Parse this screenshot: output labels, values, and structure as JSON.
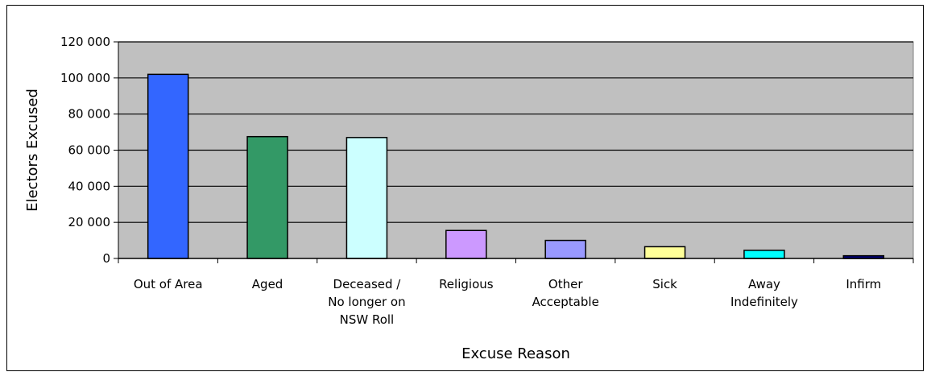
{
  "chart_data": {
    "type": "bar",
    "title": "",
    "xlabel": "Excuse Reason",
    "ylabel": "Electors Excused",
    "ylim": [
      0,
      120000
    ],
    "yticks": [
      0,
      20000,
      40000,
      60000,
      80000,
      100000,
      120000
    ],
    "ytick_labels": [
      "0",
      "20 000",
      "40 000",
      "60 000",
      "80 000",
      "100 000",
      "120 000"
    ],
    "grid": true,
    "legend": "none",
    "plot_background": "#c0c0c0",
    "categories": [
      "Out of Area",
      "Aged",
      "Deceased / No longer on NSW Roll",
      "Religious",
      "Other Acceptable",
      "Sick",
      "Away Indefinitely",
      "Infirm"
    ],
    "category_label_lines": [
      [
        "Out of Area"
      ],
      [
        "Aged"
      ],
      [
        "Deceased /",
        "No longer on",
        "NSW Roll"
      ],
      [
        "Religious"
      ],
      [
        "Other",
        "Acceptable"
      ],
      [
        "Sick"
      ],
      [
        "Away",
        "Indefinitely"
      ],
      [
        "Infirm"
      ]
    ],
    "values": [
      102000,
      67500,
      67000,
      15500,
      10000,
      6500,
      4500,
      1500
    ],
    "colors": [
      "#3366ff",
      "#339966",
      "#ccffff",
      "#cc99ff",
      "#9999ff",
      "#ffff99",
      "#00ffff",
      "#000080"
    ]
  }
}
